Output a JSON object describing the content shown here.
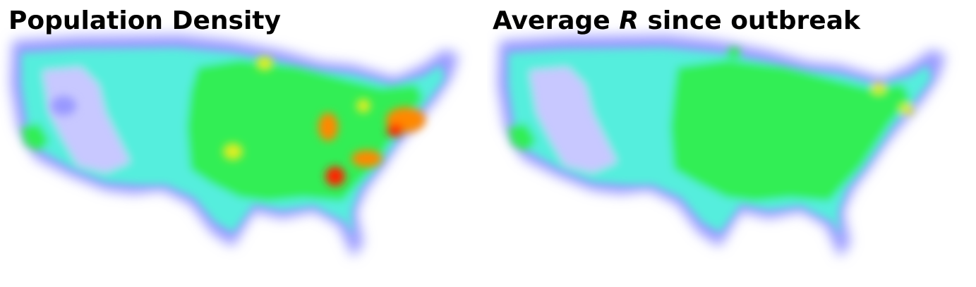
{
  "panels": [
    {
      "title": "Population Density",
      "map": "continental-us-heatmap",
      "hotspots": [
        {
          "region": "northeast-corridor",
          "intensity": 0.85
        },
        {
          "region": "ohio-valley",
          "intensity": 0.75
        },
        {
          "region": "atlanta",
          "intensity": 0.82
        },
        {
          "region": "carolinas",
          "intensity": 0.7
        },
        {
          "region": "great-lakes",
          "intensity": 0.6
        },
        {
          "region": "plains",
          "intensity": 0.45
        },
        {
          "region": "mountain-west",
          "intensity": 0.2
        }
      ]
    },
    {
      "title_parts": [
        "Average ",
        "R",
        " since outbreak"
      ],
      "map": "continental-us-heatmap",
      "hotspots": [
        {
          "region": "northeast-corridor",
          "intensity": 0.62
        },
        {
          "region": "ohio-valley",
          "intensity": 0.5
        },
        {
          "region": "atlanta",
          "intensity": 0.48
        },
        {
          "region": "carolinas",
          "intensity": 0.5
        },
        {
          "region": "great-lakes",
          "intensity": 0.48
        },
        {
          "region": "plains",
          "intensity": 0.45
        },
        {
          "region": "mountain-west",
          "intensity": 0.22
        }
      ]
    }
  ],
  "colorscale": [
    "#ffffff",
    "#c8c8ff",
    "#9999ff",
    "#55eedd",
    "#33ee55",
    "#ddee22",
    "#ff8800",
    "#ff2200"
  ]
}
